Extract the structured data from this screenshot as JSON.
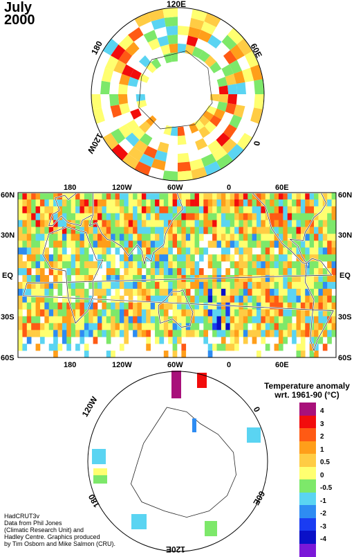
{
  "title": {
    "month": "July",
    "year": "2000"
  },
  "north_map": {
    "labels": {
      "top": "120E",
      "upper_right": "60E",
      "right": "0",
      "lower_left": "120W",
      "upper_left": "180"
    }
  },
  "main_map": {
    "top_longitudes": [
      "180",
      "120W",
      "60W",
      "0",
      "60E"
    ],
    "bottom_longitudes": [
      "180",
      "120W",
      "60W",
      "0",
      "60E"
    ],
    "left_latitudes": [
      "60N",
      "30N",
      "EQ",
      "30S",
      "60S"
    ],
    "right_latitudes": [
      "60N",
      "30N",
      "EQ",
      "30S",
      "60S"
    ]
  },
  "south_map": {
    "labels": {
      "upper_left": "120W",
      "right": "0",
      "lower_right": "60E",
      "lower_left": "180",
      "bottom": "120E"
    }
  },
  "legend": {
    "title_line1": "Temperature anomaly",
    "title_line2": "wrt. 1961-90  (°C)",
    "bins": [
      {
        "color": "#a8107a",
        "label": "4"
      },
      {
        "color": "#f20c0c",
        "label": "3"
      },
      {
        "color": "#ff5a14",
        "label": "2"
      },
      {
        "color": "#ff9e1a",
        "label": "1"
      },
      {
        "color": "#ffcc44",
        "label": "0.5"
      },
      {
        "color": "#ffff70",
        "label": "0"
      },
      {
        "color": "#7de86a",
        "label": "-0.5"
      },
      {
        "color": "#5ad4f2",
        "label": "-1"
      },
      {
        "color": "#2e8cf2",
        "label": "-2"
      },
      {
        "color": "#1a3cf2",
        "label": "-3"
      },
      {
        "color": "#0a10c8",
        "label": "-4"
      },
      {
        "color": "#7a18d8",
        "label": ""
      }
    ]
  },
  "credits": [
    "HadCRUT3v",
    "Data from Phil Jones",
    "(Climatic Research Unit) and",
    "Hadley Centre.  Graphics produced",
    "by Tim Osborn and Mike Salmon (CRU)."
  ]
}
